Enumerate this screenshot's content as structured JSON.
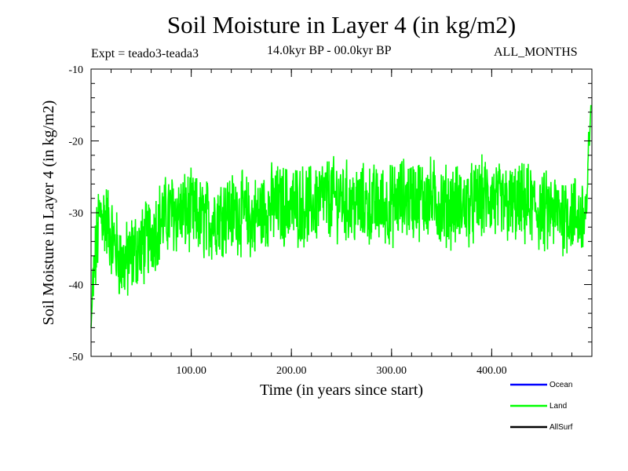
{
  "chart_data": {
    "type": "line",
    "title": "Soil Moisture in Layer 4 (in kg/m2)",
    "subtitle_left": "Expt = teado3-teada3",
    "subtitle_center": "14.0kyr BP - 00.0kyr BP",
    "subtitle_right": "ALL_MONTHS",
    "xlabel": "Time (in years since start)",
    "ylabel": "Soil Moisture in Layer 4 (in kg/m2)",
    "xlim": [
      0,
      500
    ],
    "ylim": [
      -50,
      -10
    ],
    "xticks": [
      {
        "value": 100,
        "label": "100.00"
      },
      {
        "value": 200,
        "label": "200.00"
      },
      {
        "value": 300,
        "label": "300.00"
      },
      {
        "value": 400,
        "label": "400.00"
      }
    ],
    "yticks": [
      {
        "value": -10,
        "label": "-10"
      },
      {
        "value": -20,
        "label": "-20"
      },
      {
        "value": -30,
        "label": "-30"
      },
      {
        "value": -40,
        "label": "-40"
      },
      {
        "value": -50,
        "label": "-50"
      }
    ],
    "series": [
      {
        "name": "Land",
        "color": "#00ff00",
        "x": [
          0,
          2,
          4,
          6,
          8,
          10,
          15,
          20,
          25,
          30,
          35,
          40,
          45,
          50,
          55,
          60,
          65,
          70,
          80,
          90,
          100,
          110,
          120,
          130,
          140,
          150,
          160,
          170,
          180,
          190,
          200,
          210,
          220,
          230,
          240,
          250,
          260,
          270,
          280,
          290,
          300,
          310,
          320,
          330,
          340,
          350,
          360,
          370,
          380,
          390,
          400,
          410,
          420,
          430,
          440,
          450,
          460,
          470,
          480,
          490,
          495,
          499
        ],
        "values": [
          -46,
          -40,
          -37,
          -34,
          -31,
          -30,
          -31,
          -33,
          -35,
          -37,
          -37,
          -36,
          -35,
          -35,
          -34,
          -33,
          -32,
          -31,
          -30,
          -30,
          -30,
          -31,
          -31,
          -30,
          -30,
          -30,
          -31,
          -30,
          -29,
          -29,
          -29,
          -29,
          -29,
          -28,
          -28,
          -28,
          -29,
          -29,
          -29,
          -29,
          -29,
          -28,
          -28,
          -28,
          -28,
          -29,
          -29,
          -29,
          -29,
          -28,
          -28,
          -29,
          -29,
          -29,
          -29,
          -30,
          -30,
          -30,
          -30,
          -31,
          -29,
          -15
        ]
      },
      {
        "name": "Ocean",
        "color": "#0000ff",
        "x": [],
        "values": []
      },
      {
        "name": "AllSurf",
        "color": "#000000",
        "x": [],
        "values": []
      }
    ],
    "legend": [
      {
        "label": "Ocean",
        "color": "#0000ff"
      },
      {
        "label": "Land",
        "color": "#00ff00"
      },
      {
        "label": "AllSurf",
        "color": "#000000"
      }
    ],
    "legend_position": "bottom-right"
  }
}
